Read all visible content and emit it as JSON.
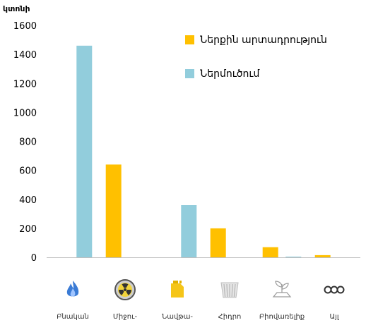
{
  "colors": {
    "domestic": "#FFC000",
    "import": "#92CDDC",
    "axis": "#bfbfbf"
  },
  "chart_data": {
    "type": "bar",
    "ylabel": "կտոնի",
    "ylim": [
      0,
      1600
    ],
    "yticks": [
      "0",
      "200",
      "400",
      "600",
      "800",
      "1000",
      "1200",
      "1400",
      "1600"
    ],
    "grid": false,
    "legend_position": "top-right",
    "categories": [
      "Բնական",
      "Միջու-",
      "Նավթա-",
      "Հիդրո",
      "Բիովառելիք",
      "Այլ"
    ],
    "category_icons": [
      "flame-icon",
      "radiation-icon",
      "oil-canister-icon",
      "dam-icon",
      "plant-icon",
      "infinity-icon"
    ],
    "series": [
      {
        "name": "Ներքին արտադրություն",
        "color": "#FFC000",
        "values": [
          0,
          640,
          0,
          200,
          70,
          15
        ]
      },
      {
        "name": "Ներմուծում",
        "color": "#92CDDC",
        "values": [
          1460,
          0,
          360,
          0,
          5,
          0
        ]
      }
    ]
  }
}
